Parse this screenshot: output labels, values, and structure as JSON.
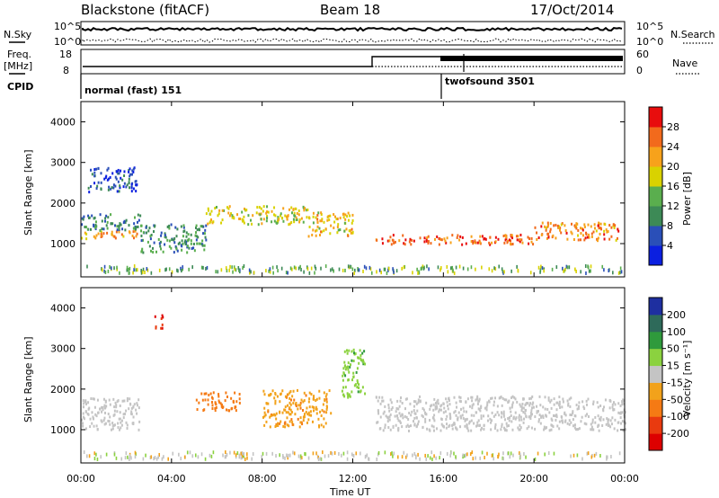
{
  "header": {
    "title": "Blackstone (fitACF)",
    "beam": "Beam 18",
    "date": "17/Oct/2014"
  },
  "top_panels": {
    "nsky_label": "N.Sky",
    "nsearch_label": "N.Search",
    "noise_ticks_left": [
      "10^5",
      "10^0"
    ],
    "noise_ticks_right": [
      "10^5",
      "10^0"
    ],
    "freq_label": "Freq.",
    "freq_unit": "[MHz]",
    "freq_ticks": [
      "18",
      "8"
    ],
    "nave_label": "Nave",
    "nave_ticks": [
      "60",
      "0"
    ],
    "cpid_label": "CPID",
    "cpid_programs": [
      {
        "name": "normal (fast) 151",
        "start_hour": 0
      },
      {
        "name": "twofsound 3501",
        "start_hour": 16
      }
    ]
  },
  "axes": {
    "xlabel": "Time UT",
    "xticks": [
      "00:00",
      "04:00",
      "08:00",
      "12:00",
      "16:00",
      "20:00",
      "00:00"
    ],
    "ylabel": "Slant Range [km]",
    "yticks": [
      "4000",
      "3000",
      "2000",
      "1000"
    ]
  },
  "colorbars": {
    "power": {
      "label": "Power [dB]",
      "ticks": [
        "28",
        "24",
        "20",
        "16",
        "12",
        "8",
        "4"
      ],
      "colors": [
        "#0b1fe0",
        "#2a4fb8",
        "#3d8a56",
        "#5aae4e",
        "#d9d200",
        "#f7a21b",
        "#f26a1c",
        "#e80d0d"
      ]
    },
    "velocity": {
      "label": "Velocity [m s⁻¹]",
      "ticks": [
        "200",
        "100",
        "50",
        "15",
        "-15",
        "-50",
        "-100",
        "-200"
      ],
      "colors": [
        "#1e2fa0",
        "#2e6a5a",
        "#2f9a3c",
        "#8bd23f",
        "#c4c4c4",
        "#f2a21b",
        "#f57a14",
        "#e93a0f",
        "#dd0000"
      ]
    }
  },
  "chart_data": [
    {
      "type": "heatmap",
      "name": "power",
      "x_range_hours": [
        0,
        24
      ],
      "y_range_km": [
        180,
        4500
      ],
      "features": [
        {
          "t": [
            0.0,
            2.6
          ],
          "range_km": [
            1150,
            1350
          ],
          "value_db": 22
        },
        {
          "t": [
            0.0,
            2.6
          ],
          "range_km": [
            1350,
            1750
          ],
          "value_db": 9
        },
        {
          "t": [
            0.3,
            2.5
          ],
          "range_km": [
            2300,
            2900
          ],
          "value_db": 6
        },
        {
          "t": [
            2.6,
            5.5
          ],
          "range_km": [
            800,
            1500
          ],
          "value_db": 11
        },
        {
          "t": [
            5.5,
            10.0
          ],
          "range_km": [
            1500,
            1950
          ],
          "value_db": 18
        },
        {
          "t": [
            10.0,
            12.0
          ],
          "range_km": [
            1200,
            1800
          ],
          "value_db": 20
        },
        {
          "t": [
            13.0,
            20.0
          ],
          "range_km": [
            1000,
            1250
          ],
          "value_db": 26
        },
        {
          "t": [
            20.0,
            23.8
          ],
          "range_km": [
            1100,
            1550
          ],
          "value_db": 24
        }
      ]
    },
    {
      "type": "heatmap",
      "name": "velocity",
      "x_range_hours": [
        0,
        24
      ],
      "y_range_km": [
        180,
        4500
      ],
      "features": [
        {
          "t": [
            0.0,
            2.6
          ],
          "range_km": [
            1000,
            1800
          ],
          "value_ms": 0
        },
        {
          "t": [
            3.2,
            3.6
          ],
          "range_km": [
            3500,
            3850
          ],
          "value_ms": -200
        },
        {
          "t": [
            5.0,
            7.0
          ],
          "range_km": [
            1500,
            1950
          ],
          "value_ms": -80
        },
        {
          "t": [
            8.0,
            11.0
          ],
          "range_km": [
            1100,
            2000
          ],
          "value_ms": -40
        },
        {
          "t": [
            11.5,
            12.5
          ],
          "range_km": [
            1800,
            3000
          ],
          "value_ms": 40
        },
        {
          "t": [
            13.0,
            24.0
          ],
          "range_km": [
            1000,
            1850
          ],
          "value_ms": 0
        }
      ]
    }
  ]
}
